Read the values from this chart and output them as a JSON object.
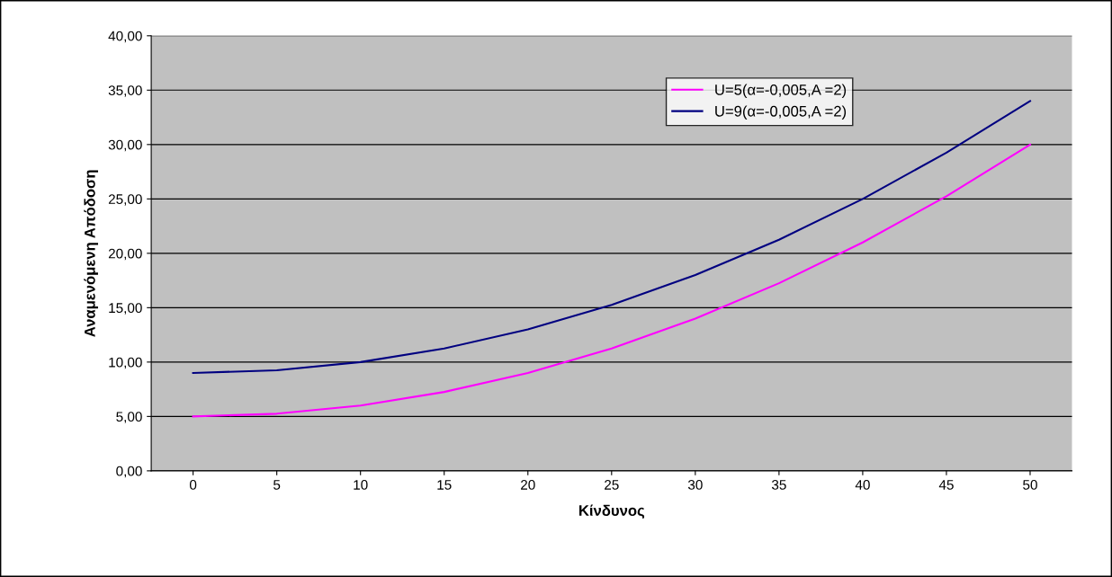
{
  "chart_data": {
    "type": "line",
    "xlabel": "Κίνδυνος",
    "ylabel": "Αναμενόμενη Απόδοση",
    "categories": [
      "0",
      "5",
      "10",
      "15",
      "20",
      "25",
      "30",
      "35",
      "40",
      "45",
      "50"
    ],
    "series": [
      {
        "name": "U=5(α=-0,005,A =2)",
        "color": "#ff00ff",
        "values": [
          5,
          5.25,
          6,
          7.25,
          9,
          11.25,
          14,
          17.25,
          21,
          25.25,
          30
        ]
      },
      {
        "name": "U=9(α=-0,005,A =2)",
        "color": "#000080",
        "values": [
          9,
          9.25,
          10,
          11.25,
          13,
          15.25,
          18,
          21.25,
          25,
          29.25,
          34
        ]
      }
    ],
    "ylim": [
      0,
      40
    ],
    "yticks": [
      {
        "value": 0,
        "label": "0,00"
      },
      {
        "value": 5,
        "label": "5,00"
      },
      {
        "value": 10,
        "label": "10,00"
      },
      {
        "value": 15,
        "label": "15,00"
      },
      {
        "value": 20,
        "label": "20,00"
      },
      {
        "value": 25,
        "label": "25,00"
      },
      {
        "value": 30,
        "label": "30,00"
      },
      {
        "value": 35,
        "label": "35,00"
      },
      {
        "value": 40,
        "label": "40,00"
      }
    ],
    "grid": "y",
    "legend": "top right",
    "marker": "none",
    "line_style": "solid"
  }
}
